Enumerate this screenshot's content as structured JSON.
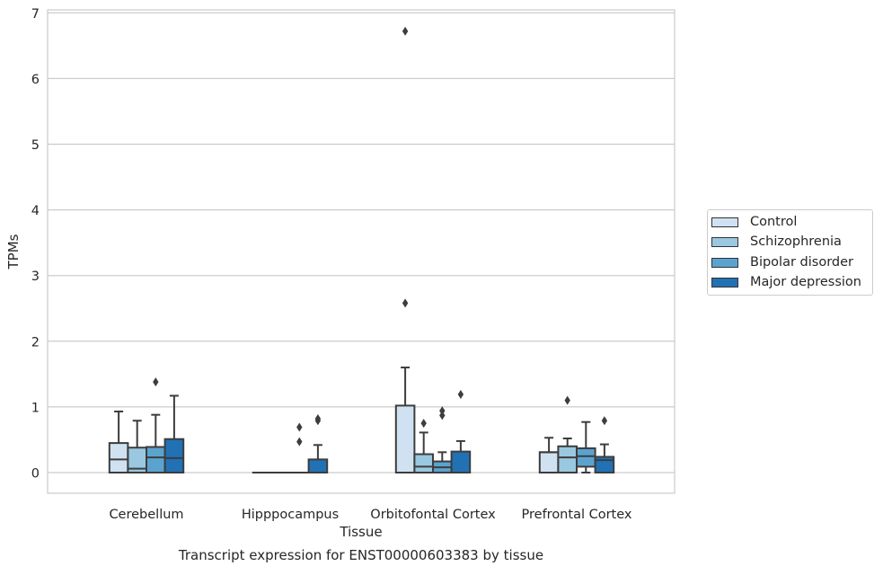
{
  "chart_data": {
    "type": "boxplot",
    "title": "Transcript expression for ENST00000603383 by tissue",
    "xlabel": "Tissue",
    "ylabel": "TPMs",
    "ylim": [
      -0.32,
      7.08
    ],
    "yticks": [
      0,
      1,
      2,
      3,
      4,
      5,
      6,
      7
    ],
    "grid": true,
    "legend_position": "right",
    "categories": [
      "Cerebellum",
      "Hipppocampus",
      "Orbitofontal Cortex",
      "Prefrontal Cortex"
    ],
    "series": [
      {
        "name": "Control",
        "color": "#d0e1f2",
        "boxes": [
          {
            "whisker_low": 0,
            "q1": 0,
            "median": 0.2,
            "q3": 0.45,
            "whisker_high": 0.93,
            "outliers": []
          },
          {
            "whisker_low": 0,
            "q1": 0,
            "median": 0,
            "q3": 0,
            "whisker_high": 0,
            "outliers": []
          },
          {
            "whisker_low": 0,
            "q1": 0,
            "median": 0,
            "q3": 1.02,
            "whisker_high": 1.6,
            "outliers": [
              2.58,
              6.72
            ]
          },
          {
            "whisker_low": 0,
            "q1": 0,
            "median": 0.31,
            "q3": 0.31,
            "whisker_high": 0.53,
            "outliers": []
          }
        ]
      },
      {
        "name": "Schizophrenia",
        "color": "#9ac8e0",
        "boxes": [
          {
            "whisker_low": 0,
            "q1": 0,
            "median": 0.06,
            "q3": 0.38,
            "whisker_high": 0.79,
            "outliers": []
          },
          {
            "whisker_low": 0,
            "q1": 0,
            "median": 0,
            "q3": 0,
            "whisker_high": 0,
            "outliers": []
          },
          {
            "whisker_low": 0,
            "q1": 0,
            "median": 0.09,
            "q3": 0.28,
            "whisker_high": 0.61,
            "outliers": [
              0.75
            ]
          },
          {
            "whisker_low": 0,
            "q1": 0,
            "median": 0.23,
            "q3": 0.4,
            "whisker_high": 0.52,
            "outliers": [
              1.1
            ]
          }
        ]
      },
      {
        "name": "Bipolar disorder",
        "color": "#5ba3cf",
        "boxes": [
          {
            "whisker_low": 0,
            "q1": 0,
            "median": 0.23,
            "q3": 0.39,
            "whisker_high": 0.88,
            "outliers": [
              1.38
            ]
          },
          {
            "whisker_low": 0,
            "q1": 0,
            "median": 0,
            "q3": 0,
            "whisker_high": 0,
            "outliers": [
              0.47,
              0.69
            ]
          },
          {
            "whisker_low": 0,
            "q1": 0,
            "median": 0.08,
            "q3": 0.17,
            "whisker_high": 0.31,
            "outliers": [
              0.87,
              0.94
            ]
          },
          {
            "whisker_low": 0,
            "q1": 0.09,
            "median": 0.25,
            "q3": 0.37,
            "whisker_high": 0.77,
            "outliers": []
          }
        ]
      },
      {
        "name": "Major depression",
        "color": "#2171b5",
        "boxes": [
          {
            "whisker_low": 0,
            "q1": 0,
            "median": 0.22,
            "q3": 0.51,
            "whisker_high": 1.17,
            "outliers": []
          },
          {
            "whisker_low": 0,
            "q1": 0,
            "median": 0,
            "q3": 0.2,
            "whisker_high": 0.42,
            "outliers": [
              0.79,
              0.82
            ]
          },
          {
            "whisker_low": 0,
            "q1": 0,
            "median": 0,
            "q3": 0.32,
            "whisker_high": 0.48,
            "outliers": [
              1.19
            ]
          },
          {
            "whisker_low": 0,
            "q1": 0,
            "median": 0.19,
            "q3": 0.24,
            "whisker_high": 0.43,
            "outliers": [
              0.79
            ]
          }
        ]
      }
    ]
  }
}
